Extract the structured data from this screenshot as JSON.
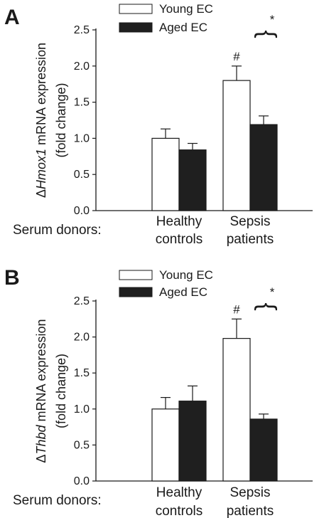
{
  "colors": {
    "young": "#ffffff",
    "aged": "#1f1f1f",
    "axis": "#1a1a1a"
  },
  "chart_data": [
    {
      "type": "bar",
      "panel": "A",
      "ylabel_prefix": "Δ",
      "ylabel_gene": "Hmox1",
      "ylabel_rest": " mRNA expression",
      "ylabel_line2": "(fold change)",
      "xlabel": "Serum donors:",
      "categories": [
        [
          "Healthy",
          "controls"
        ],
        [
          "Sepsis",
          "patients"
        ]
      ],
      "ylim": [
        0,
        2.5
      ],
      "yticks": [
        "0.0",
        "0.5",
        "1.0",
        "1.5",
        "2.0",
        "2.5"
      ],
      "legend_position": "top",
      "series": [
        {
          "name": "Young EC",
          "values": [
            1.0,
            1.8
          ],
          "errors": [
            0.13,
            0.2
          ]
        },
        {
          "name": "Aged EC",
          "values": [
            0.84,
            1.19
          ],
          "errors": [
            0.09,
            0.12
          ]
        }
      ],
      "annotations": {
        "hash": "#",
        "star": "*",
        "brace": "{"
      }
    },
    {
      "type": "bar",
      "panel": "B",
      "ylabel_prefix": "Δ",
      "ylabel_gene": "Thbd",
      "ylabel_rest": " mRNA expression",
      "ylabel_line2": "(fold change)",
      "xlabel": "Serum donors:",
      "categories": [
        [
          "Healthy",
          "controls"
        ],
        [
          "Sepsis",
          "patients"
        ]
      ],
      "ylim": [
        0,
        2.5
      ],
      "yticks": [
        "0.0",
        "0.5",
        "1.0",
        "1.5",
        "2.0",
        "2.5"
      ],
      "legend_position": "top",
      "series": [
        {
          "name": "Young EC",
          "values": [
            1.0,
            1.98
          ],
          "errors": [
            0.16,
            0.27
          ]
        },
        {
          "name": "Aged EC",
          "values": [
            1.11,
            0.86
          ],
          "errors": [
            0.21,
            0.07
          ]
        }
      ],
      "annotations": {
        "hash": "#",
        "star": "*",
        "brace": "{"
      }
    }
  ]
}
